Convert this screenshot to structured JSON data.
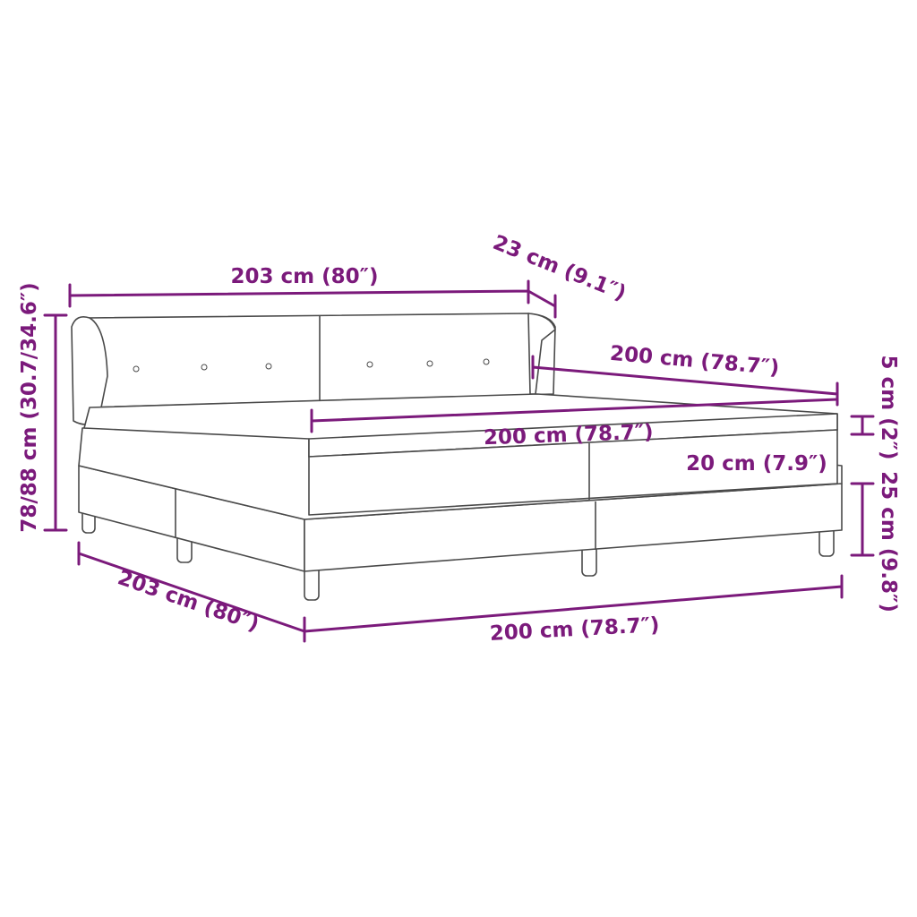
{
  "accent_color": "#7b1a7b",
  "dimensions": {
    "headboard_width": "203 cm (80″)",
    "headboard_depth": "23 cm (9.1″)",
    "total_height": "78/88 cm (30.7/34.6″)",
    "side_length_upper": "200 cm (78.7″)",
    "mattress_width": "200 cm (78.7″)",
    "topper_height": "5 cm (2″)",
    "mattress_height": "20 cm (7.9″)",
    "base_height": "25 cm (9.8″)",
    "bottom_width": "203 cm (80″)",
    "bottom_length": "200 cm (78.7″)"
  }
}
